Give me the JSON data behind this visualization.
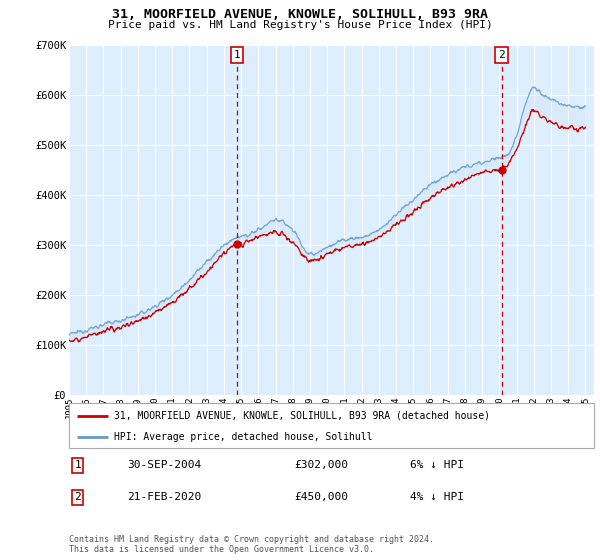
{
  "title": "31, MOORFIELD AVENUE, KNOWLE, SOLIHULL, B93 9RA",
  "subtitle": "Price paid vs. HM Land Registry's House Price Index (HPI)",
  "legend_label_red": "31, MOORFIELD AVENUE, KNOWLE, SOLIHULL, B93 9RA (detached house)",
  "legend_label_blue": "HPI: Average price, detached house, Solihull",
  "annotation1_date": "30-SEP-2004",
  "annotation1_price": "£302,000",
  "annotation1_hpi": "6% ↓ HPI",
  "annotation2_date": "21-FEB-2020",
  "annotation2_price": "£450,000",
  "annotation2_hpi": "4% ↓ HPI",
  "footer": "Contains HM Land Registry data © Crown copyright and database right 2024.\nThis data is licensed under the Open Government Licence v3.0.",
  "ylim": [
    0,
    700000
  ],
  "yticks": [
    0,
    100000,
    200000,
    300000,
    400000,
    500000,
    600000,
    700000
  ],
  "ytick_labels": [
    "£0",
    "£100K",
    "£200K",
    "£300K",
    "£400K",
    "£500K",
    "£600K",
    "£700K"
  ],
  "vline1_x": 2004.75,
  "vline2_x": 2020.13,
  "sale1_x": 2004.75,
  "sale1_y": 302000,
  "sale2_x": 2020.13,
  "sale2_y": 450000,
  "background_color": "#ffffff",
  "plot_bg_color": "#ddeeff",
  "grid_color": "#ffffff",
  "red_color": "#cc0000",
  "blue_color": "#6699cc",
  "fill_color": "#cce0f5",
  "vline_color": "#cc0000",
  "xlim_left": 1995,
  "xlim_right": 2025.5
}
